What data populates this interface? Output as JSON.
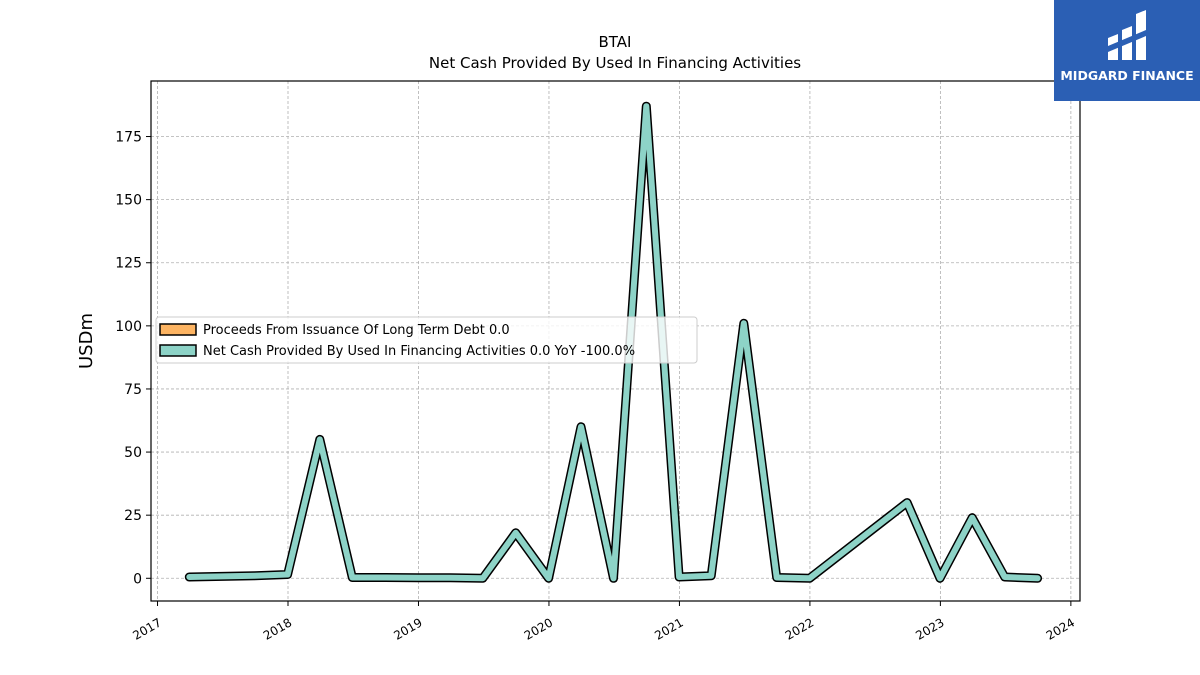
{
  "brand": {
    "name": "MIDGARD FINANCE",
    "bg_color": "#2b5fb4"
  },
  "chart_data": {
    "type": "line",
    "title": "BTAI",
    "subtitle": "Net Cash Provided By Used In Financing Activities",
    "xlabel": "",
    "ylabel": "USDm",
    "ylim": [
      -9,
      197
    ],
    "xlim": [
      2016.95,
      2024.07
    ],
    "grid": true,
    "legend_position": "center-left",
    "x_ticks": [
      "2017",
      "2018",
      "2019",
      "2020",
      "2021",
      "2022",
      "2023",
      "2024"
    ],
    "y_ticks": [
      "0",
      "25",
      "50",
      "75",
      "100",
      "125",
      "150",
      "175"
    ],
    "series": [
      {
        "name": "Proceeds From Issuance Of Long Term Debt",
        "legend_label": "Proceeds From Issuance Of Long Term Debt  0.0",
        "color": "#fdb462",
        "x": [],
        "y": []
      },
      {
        "name": "Net Cash Provided By Used In Financing Activities",
        "legend_label": "Net Cash Provided By Used In Financing Activities  0.0 YoY -100.0%",
        "color": "#8dd3c7",
        "x": [
          "2017-03-31",
          "2017-09-30",
          "2017-12-31",
          "2018-03-31",
          "2018-06-30",
          "2018-09-30",
          "2018-12-31",
          "2019-03-31",
          "2019-06-30",
          "2019-09-30",
          "2019-12-31",
          "2020-03-31",
          "2020-06-30",
          "2020-09-30",
          "2020-12-31",
          "2021-03-31",
          "2021-06-30",
          "2021-09-30",
          "2021-12-31",
          "2022-09-30",
          "2022-12-31",
          "2023-03-31",
          "2023-06-30",
          "2023-09-30"
        ],
        "y": [
          0.5,
          1.0,
          1.5,
          55.0,
          0.3,
          0.3,
          0.2,
          0.2,
          0.0,
          18.0,
          0.0,
          60.0,
          0.0,
          187.0,
          0.5,
          1.0,
          101.0,
          0.3,
          0.0,
          30.0,
          0.0,
          24.0,
          0.5,
          0.0
        ]
      }
    ]
  }
}
